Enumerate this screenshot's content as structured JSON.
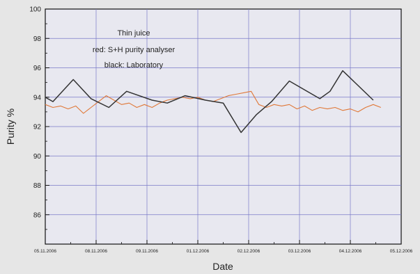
{
  "chart_data": {
    "type": "line",
    "xlabel": "Date",
    "ylabel": "Purity %",
    "ylim": [
      84,
      100
    ],
    "yticks": [
      "100",
      "98",
      "96",
      "94",
      "92",
      "90",
      "88",
      "86"
    ],
    "xlim": [
      0,
      14
    ],
    "xticks": [
      {
        "x": 0,
        "label": "05.11.2006"
      },
      {
        "x": 2,
        "label": "08.11.2006"
      },
      {
        "x": 4,
        "label": "09.11.2006"
      },
      {
        "x": 6,
        "label": "01.12.2006"
      },
      {
        "x": 8,
        "label": "02.12.2006"
      },
      {
        "x": 10,
        "label": "03.12.2006"
      },
      {
        "x": 12,
        "label": "04.12.2006"
      },
      {
        "x": 14,
        "label": "05.12.2006"
      }
    ],
    "grid": true,
    "annotation": [
      "Thin juice",
      "red: S+H purity analyser",
      "black: Laboratory"
    ],
    "series": [
      {
        "color": "#333333",
        "points": [
          [
            0.0,
            94.0
          ],
          [
            0.3,
            93.7
          ],
          [
            1.1,
            95.2
          ],
          [
            1.8,
            93.9
          ],
          [
            2.5,
            93.3
          ],
          [
            3.2,
            94.4
          ],
          [
            4.2,
            93.8
          ],
          [
            4.8,
            93.6
          ],
          [
            5.5,
            94.1
          ],
          [
            6.3,
            93.8
          ],
          [
            7.0,
            93.6
          ],
          [
            7.7,
            91.6
          ],
          [
            8.3,
            92.8
          ],
          [
            8.9,
            93.7
          ],
          [
            9.6,
            95.1
          ],
          [
            10.8,
            93.9
          ],
          [
            11.2,
            94.4
          ],
          [
            11.7,
            95.8
          ],
          [
            12.9,
            93.8
          ]
        ]
      },
      {
        "color": "#e07838",
        "points": [
          [
            0.0,
            93.5
          ],
          [
            0.3,
            93.3
          ],
          [
            0.6,
            93.4
          ],
          [
            0.9,
            93.2
          ],
          [
            1.2,
            93.4
          ],
          [
            1.5,
            92.9
          ],
          [
            1.8,
            93.3
          ],
          [
            2.1,
            93.7
          ],
          [
            2.4,
            94.1
          ],
          [
            2.7,
            93.8
          ],
          [
            3.0,
            93.5
          ],
          [
            3.3,
            93.6
          ],
          [
            3.6,
            93.3
          ],
          [
            3.9,
            93.5
          ],
          [
            4.2,
            93.3
          ],
          [
            4.5,
            93.6
          ],
          [
            4.8,
            93.8
          ],
          [
            5.1,
            93.9
          ],
          [
            5.4,
            94.0
          ],
          [
            5.7,
            93.9
          ],
          [
            6.0,
            94.0
          ],
          [
            6.3,
            93.8
          ],
          [
            6.6,
            93.7
          ],
          [
            6.9,
            93.9
          ],
          [
            7.2,
            94.1
          ],
          [
            7.5,
            94.2
          ],
          [
            7.8,
            94.3
          ],
          [
            8.1,
            94.4
          ],
          [
            8.4,
            93.5
          ],
          [
            8.7,
            93.3
          ],
          [
            9.0,
            93.5
          ],
          [
            9.3,
            93.4
          ],
          [
            9.6,
            93.5
          ],
          [
            9.9,
            93.2
          ],
          [
            10.2,
            93.4
          ],
          [
            10.5,
            93.1
          ],
          [
            10.8,
            93.3
          ],
          [
            11.1,
            93.2
          ],
          [
            11.4,
            93.3
          ],
          [
            11.7,
            93.1
          ],
          [
            12.0,
            93.2
          ],
          [
            12.3,
            93.0
          ],
          [
            12.6,
            93.3
          ],
          [
            12.9,
            93.5
          ],
          [
            13.2,
            93.3
          ]
        ]
      }
    ]
  }
}
